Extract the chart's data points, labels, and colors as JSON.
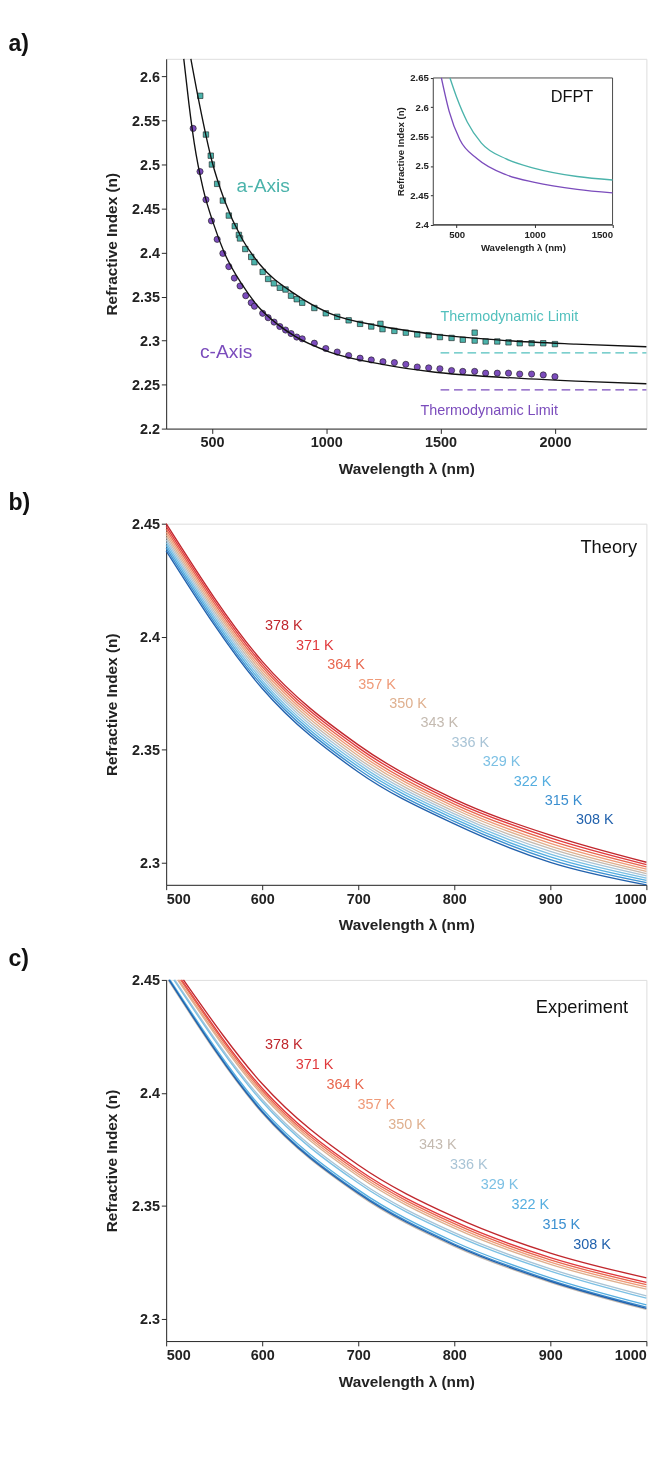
{
  "chart_data": [
    {
      "type": "scatter",
      "title": "a)",
      "xlabel": "Wavelength λ (nm)",
      "ylabel": "Refractive Index (n)",
      "xlim": [
        300,
        2400
      ],
      "ylim": [
        2.2,
        2.62
      ],
      "xticks": [
        500,
        1000,
        1500,
        2000
      ],
      "yticks": [
        2.2,
        2.25,
        2.3,
        2.35,
        2.4,
        2.45,
        2.5,
        2.55,
        2.6
      ],
      "series": [
        {
          "name": "a-Axis",
          "color": "#4bb3ab",
          "marker": "square",
          "x": [
            449,
            474,
            495,
            500,
            523,
            548,
            574,
            600,
            618,
            623,
            646,
            672,
            686,
            722,
            746,
            771,
            797,
            822,
            846,
            871,
            895,
            948,
            998,
            1048,
            1098,
            1148,
            1197,
            1237,
            1246,
            1298,
            1348,
            1398,
            1448,
            1497,
            1548,
            1597,
            1649,
            1649,
            1697,
            1748,
            1797,
            1846,
            1898,
            1949,
            2000
          ],
          "values": [
            2.578,
            2.534,
            2.51,
            2.5,
            2.478,
            2.459,
            2.442,
            2.43,
            2.42,
            2.416,
            2.404,
            2.395,
            2.389,
            2.378,
            2.37,
            2.365,
            2.36,
            2.358,
            2.351,
            2.347,
            2.343,
            2.337,
            2.331,
            2.327,
            2.323,
            2.319,
            2.316,
            2.319,
            2.313,
            2.311,
            2.309,
            2.307,
            2.306,
            2.304,
            2.303,
            2.301,
            2.309,
            2.3,
            2.299,
            2.299,
            2.298,
            2.297,
            2.297,
            2.297,
            2.296
          ]
        },
        {
          "name": "c-Axis",
          "color": "#7b4cbc",
          "marker": "circle",
          "x": [
            418,
            448,
            474,
            498,
            523,
            548,
            574,
            598,
            623,
            648,
            672,
            686,
            722,
            746,
            772,
            797,
            822,
            846,
            871,
            895,
            948,
            998,
            1048,
            1098,
            1148,
            1197,
            1248,
            1298,
            1348,
            1398,
            1448,
            1497,
            1548,
            1597,
            1649,
            1697,
            1748,
            1797,
            1846,
            1898,
            1949,
            2000
          ],
          "values": [
            2.541,
            2.492,
            2.46,
            2.436,
            2.415,
            2.399,
            2.384,
            2.371,
            2.362,
            2.351,
            2.343,
            2.339,
            2.331,
            2.326,
            2.321,
            2.316,
            2.312,
            2.308,
            2.304,
            2.302,
            2.297,
            2.291,
            2.287,
            2.283,
            2.28,
            2.278,
            2.276,
            2.275,
            2.273,
            2.27,
            2.269,
            2.268,
            2.266,
            2.265,
            2.265,
            2.263,
            2.263,
            2.263,
            2.262,
            2.262,
            2.261,
            2.259
          ]
        },
        {
          "type": "line",
          "color": "#111111",
          "x": [
            408,
            446,
            500,
            554,
            631,
            708,
            862,
            1015,
            1246,
            1477,
            1785,
            2092,
            2400
          ],
          "values": [
            2.62,
            2.568,
            2.504,
            2.46,
            2.416,
            2.387,
            2.353,
            2.331,
            2.316,
            2.307,
            2.3,
            2.296,
            2.293
          ]
        },
        {
          "type": "line",
          "color": "#111111",
          "x": [
            377,
            400,
            423,
            462,
            508,
            554,
            631,
            708,
            785,
            862,
            1015,
            1246,
            1477,
            1785,
            2092,
            2400
          ],
          "values": [
            2.62,
            2.568,
            2.524,
            2.472,
            2.432,
            2.4,
            2.364,
            2.337,
            2.319,
            2.305,
            2.287,
            2.273,
            2.264,
            2.258,
            2.254,
            2.251
          ]
        },
        {
          "type": "line",
          "name": "Thermodynamic Limit",
          "color": "#52c0bd",
          "line_style": "dashed",
          "x": [
            1500,
            2400
          ],
          "values": [
            2.286,
            2.286
          ]
        },
        {
          "type": "line",
          "name": "Thermodynamic Limit",
          "color": "#7b4cbc",
          "line_style": "dashed",
          "x": [
            1500,
            2400
          ],
          "values": [
            2.244,
            2.244
          ]
        }
      ]
    },
    {
      "type": "line",
      "xlabel": "Wavelength λ (nm)",
      "ylabel": "Refractive Index (n)",
      "xlim": [
        350,
        1500
      ],
      "ylim": [
        2.4,
        2.65
      ],
      "xticks": [
        500,
        1000,
        1500
      ],
      "yticks": [
        2.4,
        2.45,
        2.5,
        2.55,
        2.6,
        2.65
      ],
      "annotations": [
        "DFPT"
      ],
      "series": [
        {
          "color": "#4bb3ab",
          "x": [
            457,
            500,
            568,
            659,
            818,
            1000,
            1273,
            1500
          ],
          "values": [
            2.65,
            2.617,
            2.575,
            2.539,
            2.512,
            2.496,
            2.482,
            2.476
          ]
        },
        {
          "color": "#7b4cbc",
          "x": [
            402,
            452,
            520,
            634,
            818,
            1000,
            1273,
            1500
          ],
          "values": [
            2.65,
            2.593,
            2.545,
            2.512,
            2.485,
            2.472,
            2.46,
            2.454
          ]
        }
      ]
    },
    {
      "type": "line",
      "title": "b)",
      "xlabel": "Wavelength λ (nm)",
      "ylabel": "Refractive Index (n)",
      "xlim": [
        500,
        1000
      ],
      "ylim": [
        2.29,
        2.45
      ],
      "xticks": [
        500,
        600,
        700,
        800,
        900,
        1000
      ],
      "yticks": [
        2.3,
        2.35,
        2.4,
        2.45
      ],
      "annotations": [
        "Theory"
      ],
      "x": [
        500,
        600,
        700,
        800,
        900,
        1000
      ],
      "series": [
        {
          "name": "378 K",
          "color": "#c0272d",
          "values": [
            2.45,
            2.389,
            2.352,
            2.328,
            2.312,
            2.3
          ]
        },
        {
          "name": "371 K",
          "color": "#e0393c",
          "values": [
            2.4488,
            2.3878,
            2.3508,
            2.3269,
            2.3108,
            2.299
          ]
        },
        {
          "name": "364 K",
          "color": "#e8674f",
          "values": [
            2.4476,
            2.3866,
            2.3496,
            2.3258,
            2.3096,
            2.298
          ]
        },
        {
          "name": "357 K",
          "color": "#ef9a78",
          "values": [
            2.4464,
            2.3854,
            2.3484,
            2.3247,
            2.3084,
            2.297
          ]
        },
        {
          "name": "350 K",
          "color": "#dfb08f",
          "values": [
            2.4452,
            2.3842,
            2.3472,
            2.3236,
            2.3072,
            2.296
          ]
        },
        {
          "name": "343 K",
          "color": "#c4bab0",
          "values": [
            2.444,
            2.383,
            2.346,
            2.3225,
            2.306,
            2.295
          ]
        },
        {
          "name": "336 K",
          "color": "#a9c4d6",
          "values": [
            2.4428,
            2.3818,
            2.3448,
            2.3214,
            2.3048,
            2.294
          ]
        },
        {
          "name": "329 K",
          "color": "#7cc0e4",
          "values": [
            2.4416,
            2.3806,
            2.3436,
            2.3203,
            2.3036,
            2.293
          ]
        },
        {
          "name": "322 K",
          "color": "#55aee0",
          "values": [
            2.4404,
            2.3794,
            2.3424,
            2.3192,
            2.3024,
            2.292
          ]
        },
        {
          "name": "315 K",
          "color": "#3b8fd0",
          "values": [
            2.4392,
            2.3782,
            2.3412,
            2.3181,
            2.3012,
            2.291
          ]
        },
        {
          "name": "308 K",
          "color": "#2262ad",
          "values": [
            2.438,
            2.377,
            2.34,
            2.317,
            2.3,
            2.29
          ]
        }
      ]
    },
    {
      "type": "line",
      "title": "c)",
      "xlabel": "Wavelength λ (nm)",
      "ylabel": "Refractive Index (n)",
      "xlim": [
        500,
        1000
      ],
      "ylim": [
        2.29,
        2.45
      ],
      "xticks": [
        500,
        600,
        700,
        800,
        900,
        1000
      ],
      "yticks": [
        2.3,
        2.35,
        2.4,
        2.45
      ],
      "annotations": [
        "Experiment"
      ],
      "series": [
        {
          "name": "378 K",
          "color": "#c0272d",
          "x": [
            518,
            600,
            700,
            800,
            900,
            1000
          ],
          "values": [
            2.45,
            2.404,
            2.368,
            2.345,
            2.329,
            2.318
          ]
        },
        {
          "name": "371 K",
          "color": "#e0393c",
          "x": [
            516,
            600,
            700,
            800,
            900,
            1000
          ],
          "values": [
            2.45,
            2.402,
            2.366,
            2.343,
            2.327,
            2.316
          ]
        },
        {
          "name": "364 K",
          "color": "#e8674f",
          "x": [
            515,
            600,
            700,
            800,
            900,
            1000
          ],
          "values": [
            2.45,
            2.401,
            2.365,
            2.342,
            2.326,
            2.315
          ]
        },
        {
          "name": "357 K",
          "color": "#ef9a78",
          "x": [
            513,
            600,
            700,
            800,
            900,
            1000
          ],
          "values": [
            2.45,
            2.4,
            2.364,
            2.341,
            2.325,
            2.314
          ]
        },
        {
          "name": "350 K",
          "color": "#dfb08f",
          "x": [
            512,
            600,
            700,
            800,
            900,
            1000
          ],
          "values": [
            2.45,
            2.399,
            2.363,
            2.34,
            2.324,
            2.313
          ]
        },
        {
          "name": "343 K",
          "color": "#c4bab0",
          "x": [
            502,
            600,
            700,
            800,
            900,
            1000
          ],
          "values": [
            2.45,
            2.391,
            2.355,
            2.332,
            2.316,
            2.304
          ]
        },
        {
          "name": "336 K",
          "color": "#a9c4d6",
          "x": [
            509,
            600,
            700,
            800,
            900,
            1000
          ],
          "values": [
            2.45,
            2.397,
            2.361,
            2.338,
            2.322,
            2.31
          ]
        },
        {
          "name": "329 K",
          "color": "#7cc0e4",
          "x": [
            508,
            600,
            700,
            800,
            900,
            1000
          ],
          "values": [
            2.45,
            2.396,
            2.36,
            2.337,
            2.321,
            2.309
          ]
        },
        {
          "name": "322 K",
          "color": "#55aee0",
          "x": [
            504,
            600,
            700,
            800,
            900,
            1000
          ],
          "values": [
            2.45,
            2.393,
            2.357,
            2.334,
            2.318,
            2.306
          ]
        },
        {
          "name": "315 K",
          "color": "#3b8fd0",
          "x": [
            503,
            600,
            700,
            800,
            900,
            1000
          ],
          "values": [
            2.45,
            2.392,
            2.356,
            2.333,
            2.317,
            2.305
          ]
        },
        {
          "name": "308 K",
          "color": "#2262ad",
          "x": [
            503,
            600,
            700,
            800,
            900,
            1000
          ],
          "values": [
            2.45,
            2.3915,
            2.3555,
            2.3325,
            2.3165,
            2.3045
          ]
        }
      ]
    }
  ]
}
